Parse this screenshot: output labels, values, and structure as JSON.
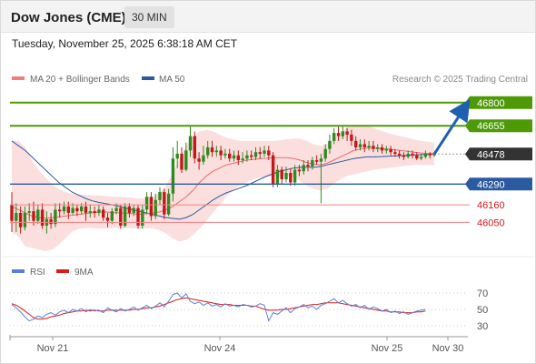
{
  "header": {
    "symbol": "Dow Jones (CME)",
    "timeframe": "30 MIN"
  },
  "timestamp": "Tuesday, November 25, 2025 6:38:18 AM CET",
  "colors": {
    "up": "#2f8a1f",
    "down": "#c21818",
    "bollinger": "#f7b7b7",
    "ma20": "#e86a6a",
    "ma50": "#2c5aa0",
    "resistance": "#4e9a06",
    "pivot": "#2c5aa0",
    "support": "#f08080",
    "last": "#333333",
    "rsi": "#5b7fd6",
    "rsi_ma": "#d91c1c",
    "arrow": "#1f5fb0"
  },
  "chart_data": [
    {
      "type": "candlestick",
      "legend": [
        {
          "label": "MA 20 + Bollinger Bands",
          "color": "#f08080"
        },
        {
          "label": "MA 50",
          "color": "#2c5aa0"
        }
      ],
      "credit": "Research © 2025 Trading Central",
      "x_ticks": [
        "Nov 21",
        "Nov 24",
        "Nov 25",
        "Nov 30"
      ],
      "ylim": [
        45870,
        46850
      ],
      "levels": [
        {
          "label": "46800",
          "value": 46800,
          "kind": "resistance"
        },
        {
          "label": "46655",
          "value": 46655,
          "kind": "resistance"
        },
        {
          "label": "46478",
          "value": 46478,
          "kind": "last"
        },
        {
          "label": "46290",
          "value": 46290,
          "kind": "pivot"
        },
        {
          "label": "46160",
          "value": 46160,
          "kind": "support"
        },
        {
          "label": "46050",
          "value": 46050,
          "kind": "support"
        }
      ],
      "candles": [
        [
          46160,
          46060,
          46240,
          45990
        ],
        [
          46060,
          46110,
          46170,
          45990
        ],
        [
          46110,
          46020,
          46150,
          45980
        ],
        [
          46020,
          46110,
          46150,
          46000
        ],
        [
          46110,
          46120,
          46170,
          46060
        ],
        [
          46120,
          46060,
          46180,
          46030
        ],
        [
          46060,
          46130,
          46160,
          46040
        ],
        [
          46130,
          46030,
          46170,
          46010
        ],
        [
          46030,
          46070,
          46120,
          45980
        ],
        [
          46070,
          46040,
          46110,
          46010
        ],
        [
          46040,
          46130,
          46170,
          46020
        ],
        [
          46130,
          46120,
          46170,
          46080
        ],
        [
          46120,
          46150,
          46180,
          46100
        ],
        [
          46150,
          46110,
          46180,
          46070
        ],
        [
          46110,
          46140,
          46170,
          46100
        ],
        [
          46140,
          46120,
          46160,
          46090
        ],
        [
          46120,
          46150,
          46170,
          46100
        ],
        [
          46150,
          46110,
          46180,
          46060
        ],
        [
          46110,
          46120,
          46160,
          46080
        ],
        [
          46120,
          46110,
          46150,
          46080
        ],
        [
          46110,
          46130,
          46160,
          46090
        ],
        [
          46130,
          46080,
          46150,
          46060
        ],
        [
          46080,
          46060,
          46110,
          46020
        ],
        [
          46060,
          46120,
          46140,
          46040
        ],
        [
          46120,
          46140,
          46170,
          46100
        ],
        [
          46140,
          46030,
          46160,
          46010
        ],
        [
          46030,
          46150,
          46170,
          46020
        ],
        [
          46150,
          46110,
          46170,
          46080
        ],
        [
          46110,
          46140,
          46160,
          46090
        ],
        [
          46140,
          46030,
          46160,
          46010
        ],
        [
          46030,
          46130,
          46160,
          46010
        ],
        [
          46130,
          46210,
          46240,
          46100
        ],
        [
          46210,
          46090,
          46240,
          46060
        ],
        [
          46090,
          46190,
          46230,
          46070
        ],
        [
          46190,
          46240,
          46270,
          46160
        ],
        [
          46240,
          46100,
          46260,
          46070
        ],
        [
          46100,
          46230,
          46260,
          46090
        ],
        [
          46230,
          46450,
          46520,
          46180
        ],
        [
          46450,
          46480,
          46560,
          46390
        ],
        [
          46480,
          46380,
          46520,
          46360
        ],
        [
          46380,
          46500,
          46550,
          46370
        ],
        [
          46500,
          46590,
          46650,
          46460
        ],
        [
          46590,
          46450,
          46620,
          46420
        ],
        [
          46450,
          46430,
          46490,
          46380
        ],
        [
          46430,
          46470,
          46530,
          46410
        ],
        [
          46470,
          46520,
          46560,
          46450
        ],
        [
          46520,
          46490,
          46560,
          46460
        ],
        [
          46490,
          46500,
          46530,
          46460
        ],
        [
          46500,
          46470,
          46530,
          46440
        ],
        [
          46470,
          46480,
          46510,
          46450
        ],
        [
          46480,
          46450,
          46510,
          46430
        ],
        [
          46450,
          46470,
          46500,
          46430
        ],
        [
          46470,
          46440,
          46500,
          46410
        ],
        [
          46440,
          46450,
          46490,
          46420
        ],
        [
          46450,
          46470,
          46500,
          46430
        ],
        [
          46470,
          46460,
          46500,
          46440
        ],
        [
          46460,
          46490,
          46520,
          46440
        ],
        [
          46490,
          46480,
          46520,
          46450
        ],
        [
          46480,
          46500,
          46530,
          46460
        ],
        [
          46500,
          46470,
          46530,
          46440
        ],
        [
          46470,
          46290,
          46490,
          46270
        ],
        [
          46290,
          46380,
          46410,
          46270
        ],
        [
          46380,
          46320,
          46400,
          46290
        ],
        [
          46320,
          46360,
          46400,
          46300
        ],
        [
          46360,
          46300,
          46390,
          46280
        ],
        [
          46300,
          46380,
          46410,
          46280
        ],
        [
          46380,
          46370,
          46410,
          46340
        ],
        [
          46370,
          46410,
          46440,
          46350
        ],
        [
          46410,
          46400,
          46440,
          46370
        ],
        [
          46400,
          46440,
          46460,
          46380
        ],
        [
          46440,
          46430,
          46470,
          46410
        ],
        [
          46430,
          46450,
          46480,
          46170
        ],
        [
          46450,
          46510,
          46540,
          46430
        ],
        [
          46510,
          46560,
          46600,
          46480
        ],
        [
          46560,
          46610,
          46640,
          46540
        ],
        [
          46610,
          46590,
          46650,
          46560
        ],
        [
          46590,
          46620,
          46650,
          46570
        ],
        [
          46620,
          46600,
          46640,
          46560
        ],
        [
          46600,
          46560,
          46630,
          46530
        ],
        [
          46560,
          46520,
          46590,
          46500
        ],
        [
          46520,
          46540,
          46570,
          46500
        ],
        [
          46540,
          46520,
          46570,
          46490
        ],
        [
          46520,
          46530,
          46560,
          46500
        ],
        [
          46530,
          46510,
          46560,
          46490
        ],
        [
          46510,
          46520,
          46540,
          46490
        ],
        [
          46520,
          46500,
          46540,
          46480
        ],
        [
          46500,
          46510,
          46530,
          46480
        ],
        [
          46510,
          46490,
          46530,
          46470
        ],
        [
          46490,
          46480,
          46510,
          46460
        ],
        [
          46480,
          46470,
          46500,
          46450
        ],
        [
          46470,
          46460,
          46490,
          46440
        ],
        [
          46460,
          46480,
          46500,
          46450
        ],
        [
          46480,
          46470,
          46500,
          46450
        ],
        [
          46470,
          46450,
          46490,
          46440
        ],
        [
          46450,
          46460,
          46480,
          46440
        ],
        [
          46460,
          46480,
          46500,
          46450
        ],
        [
          46480,
          46470,
          46490,
          46450
        ],
        [
          46470,
          46478,
          46490,
          46460
        ]
      ],
      "ma20": [
        46150,
        46130,
        46110,
        46090,
        46080,
        46075,
        46080,
        46085,
        46090,
        46095,
        46100,
        46105,
        46110,
        46115,
        46115,
        46112,
        46110,
        46108,
        46105,
        46100,
        46105,
        46110,
        46115,
        46130,
        46150,
        46180,
        46210,
        46250,
        46300,
        46340,
        46370,
        46390,
        46410,
        46420,
        46430,
        46440,
        46445,
        46450,
        46452,
        46455,
        46455,
        46455,
        46450,
        46440,
        46425,
        46415,
        46410,
        46420,
        46440,
        46460,
        46480,
        46500,
        46510,
        46515,
        46515,
        46512,
        46510,
        46505,
        46500,
        46495,
        46490,
        46485,
        46482,
        46480
      ],
      "bb_upper": [
        46560,
        46560,
        46520,
        46440,
        46380,
        46330,
        46290,
        46260,
        46240,
        46230,
        46225,
        46222,
        46220,
        46218,
        46215,
        46212,
        46210,
        46208,
        46205,
        46200,
        46205,
        46210,
        46230,
        46280,
        46360,
        46450,
        46530,
        46590,
        46620,
        46630,
        46620,
        46600,
        46580,
        46570,
        46560,
        46560,
        46560,
        46560,
        46560,
        46560,
        46565,
        46570,
        46575,
        46575,
        46560,
        46540,
        46530,
        46540,
        46570,
        46610,
        46650,
        46660,
        46660,
        46655,
        46640,
        46625,
        46610,
        46600,
        46590,
        46580,
        46570,
        46560,
        46555,
        46550
      ],
      "bb_lower": [
        45990,
        45960,
        45900,
        45890,
        45880,
        45870,
        45880,
        45910,
        45950,
        45990,
        46010,
        46015,
        46015,
        46010,
        46012,
        46014,
        46015,
        46015,
        46013,
        46010,
        46012,
        46015,
        46000,
        45980,
        45950,
        45930,
        45940,
        45970,
        46010,
        46060,
        46110,
        46160,
        46210,
        46250,
        46280,
        46300,
        46320,
        46330,
        46335,
        46340,
        46340,
        46340,
        46330,
        46310,
        46280,
        46260,
        46250,
        46260,
        46290,
        46320,
        46340,
        46350,
        46360,
        46370,
        46380,
        46385,
        46390,
        46395,
        46400,
        46405,
        46410,
        46410,
        46410,
        46410
      ],
      "ma50": [
        46560,
        46530,
        46500,
        46460,
        46420,
        46380,
        46340,
        46300,
        46270,
        46240,
        46220,
        46200,
        46185,
        46175,
        46168,
        46160,
        46150,
        46140,
        46130,
        46120,
        46110,
        46100,
        46090,
        46080,
        46075,
        46070,
        46080,
        46100,
        46130,
        46160,
        46190,
        46215,
        46235,
        46250,
        46265,
        46280,
        46300,
        46320,
        46340,
        46355,
        46370,
        46380,
        46390,
        46395,
        46395,
        46395,
        46400,
        46410,
        46420,
        46430,
        46440,
        46450,
        46455,
        46460,
        46460,
        46462,
        46464,
        46466,
        46468,
        46470,
        46472,
        46474,
        46476,
        46478
      ]
    },
    {
      "type": "line",
      "legend": [
        {
          "label": "RSI",
          "color": "#5b7fd6"
        },
        {
          "label": "9MA",
          "color": "#d91c1c"
        }
      ],
      "y_ticks": [
        "70",
        "50",
        "30"
      ],
      "ylim": [
        20,
        80
      ],
      "rsi": [
        56,
        52,
        47,
        41,
        36,
        38,
        42,
        40,
        44,
        46,
        43,
        47,
        49,
        46,
        50,
        48,
        51,
        47,
        50,
        48,
        49,
        46,
        52,
        49,
        47,
        51,
        48,
        50,
        53,
        49,
        52,
        55,
        51,
        54,
        58,
        53,
        60,
        68,
        70,
        64,
        69,
        60,
        57,
        59,
        55,
        58,
        54,
        56,
        53,
        57,
        54,
        55,
        53,
        56,
        55,
        53,
        54,
        57,
        55,
        36,
        46,
        44,
        48,
        52,
        46,
        51,
        53,
        56,
        52,
        54,
        50,
        55,
        57,
        60,
        63,
        58,
        61,
        57,
        54,
        56,
        52,
        55,
        50,
        53,
        51,
        48,
        50,
        46,
        48,
        45,
        47,
        44,
        46,
        48,
        49,
        50
      ],
      "ma9": [
        57,
        55,
        52,
        48,
        44,
        40,
        38,
        38,
        39,
        41,
        42,
        43,
        45,
        46,
        47,
        48,
        48,
        49,
        48,
        49,
        48,
        48,
        49,
        49,
        49,
        49,
        49,
        49,
        50,
        50,
        51,
        52,
        52,
        53,
        54,
        56,
        58,
        60,
        62,
        63,
        64,
        63,
        62,
        61,
        60,
        59,
        58,
        57,
        56,
        56,
        56,
        55,
        55,
        55,
        55,
        54,
        54,
        52,
        50,
        49,
        49,
        49,
        50,
        50,
        51,
        52,
        53,
        54,
        55,
        56,
        56,
        57,
        58,
        58,
        58,
        58,
        57,
        56,
        55,
        54,
        53,
        52,
        51,
        50,
        49,
        48,
        48,
        47,
        47,
        47,
        46,
        46,
        46,
        47,
        47,
        48
      ]
    }
  ]
}
